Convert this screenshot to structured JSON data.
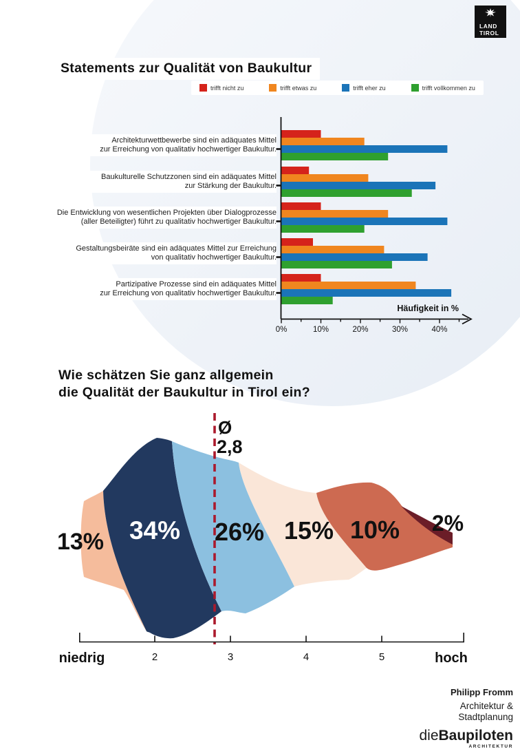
{
  "logo": {
    "line1": "LAND",
    "line2": "TIROL"
  },
  "footer": {
    "name": "Philipp Fromm",
    "line1": "Architektur &",
    "line2": "Stadtplanung",
    "brand_prefix": "die",
    "brand_main": "Baupiloten",
    "brand_sub": "ARCHITEKTUR"
  },
  "chart_data": [
    {
      "type": "bar",
      "orientation": "horizontal",
      "title": "Statements zur Qualität von Baukultur",
      "xlabel": "Häufigkeit in %",
      "xlim": [
        0,
        45
      ],
      "x_ticks": [
        "0%",
        "10%",
        "20%",
        "30%",
        "40%"
      ],
      "grid": false,
      "legend_position": "top",
      "categories": [
        "Architekturwettbewerbe sind ein adäquates Mittel zur Erreichung von qualitativ hochwertiger Baukultur.",
        "Baukulturelle Schutzzonen sind ein adäquates Mittel zur Stärkung der Baukultur.",
        "Die Entwicklung von wesentlichen Projekten über Dialogprozesse (aller Beteiligter) führt zu qualitativ hochwertiger Baukultur.",
        "Gestaltungsbeiräte sind ein adäquates Mittel zur Erreichung von qualitativ hochwertiger Baukultur.",
        "Partizipative Prozesse sind ein adäquates Mittel zur Erreichung von qualitativ hochwertiger Baukultur."
      ],
      "category_lines": [
        {
          "line1": "Architekturwettbewerbe sind ein adäquates Mittel",
          "line2": "zur Erreichung von qualitativ hochwertiger Baukultur."
        },
        {
          "line1": "Baukulturelle Schutzzonen sind ein adäquates Mittel",
          "line2": "zur Stärkung der Baukultur."
        },
        {
          "line1": "Die Entwicklung von wesentlichen Projekten über Dialogprozesse",
          "line2": "(aller Beteiligter) führt zu qualitativ hochwertiger Baukultur."
        },
        {
          "line1": "Gestaltungsbeiräte sind ein adäquates Mittel zur Erreichung",
          "line2": "von qualitativ hochwertiger Baukultur."
        },
        {
          "line1": "Partizipative Prozesse sind ein adäquates Mittel",
          "line2": "zur Erreichung von qualitativ hochwertiger Baukultur."
        }
      ],
      "series": [
        {
          "name": "trifft nicht zu",
          "color": "#d5231b",
          "values": [
            10,
            7,
            10,
            8,
            10
          ]
        },
        {
          "name": "trifft etwas zu",
          "color": "#f0861f",
          "values": [
            21,
            22,
            27,
            26,
            34
          ]
        },
        {
          "name": "trifft eher zu",
          "color": "#1b74b8",
          "values": [
            42,
            39,
            42,
            37,
            43
          ]
        },
        {
          "name": "trifft vollkommen zu",
          "color": "#2fa02f",
          "values": [
            27,
            33,
            21,
            28,
            13
          ]
        }
      ]
    },
    {
      "type": "area",
      "subtype": "stream-distribution",
      "title": "Wie schätzen Sie ganz allgemein die Qualität der Baukultur in Tirol ein?",
      "title_lines": [
        "Wie schätzen Sie ganz allgemein",
        "die Qualität der Baukultur in Tirol ein?"
      ],
      "mean": {
        "symbol": "Ø",
        "value": "2,8",
        "numeric": 2.8
      },
      "mean_line_color": "#ab1a2d",
      "x_axis": {
        "left_label": "niedrig",
        "ticks": [
          "2",
          "3",
          "4",
          "5"
        ],
        "right_label": "hoch"
      },
      "segments": [
        {
          "rating": "1 (niedrig)",
          "label": "13%",
          "value": 13,
          "color": "#f5bc9c",
          "text_color": "#111111"
        },
        {
          "rating": "2",
          "label": "34%",
          "value": 34,
          "color": "#22395f",
          "text_color": "#ffffff"
        },
        {
          "rating": "3",
          "label": "26%",
          "value": 26,
          "color": "#8cc0e0",
          "text_color": "#111111"
        },
        {
          "rating": "4",
          "label": "15%",
          "value": 15,
          "color": "#fae6d8",
          "text_color": "#111111"
        },
        {
          "rating": "5",
          "label": "10%",
          "value": 10,
          "color": "#cd6a51",
          "text_color": "#111111"
        },
        {
          "rating": "6 (hoch)",
          "label": "2%",
          "value": 2,
          "color": "#6b1d28",
          "text_color": "#111111"
        }
      ]
    }
  ]
}
